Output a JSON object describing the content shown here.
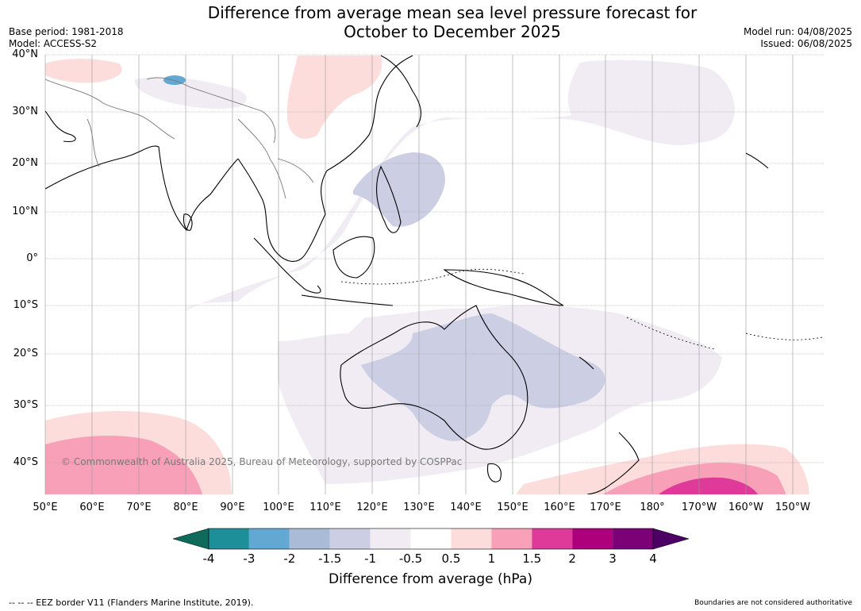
{
  "title": {
    "line1": "Difference from average mean sea level pressure forecast for",
    "line2": "October to December 2025"
  },
  "meta": {
    "base_period": "Base period: 1981-2018",
    "model": "Model: ACCESS-S2",
    "model_run": "Model run: 04/08/2025",
    "issued": "Issued: 06/08/2025"
  },
  "map": {
    "latitude_labels": [
      "40°N",
      "30°N",
      "20°N",
      "10°N",
      "0°",
      "10°S",
      "20°S",
      "30°S",
      "40°S"
    ],
    "longitude_labels": [
      "50°E",
      "60°E",
      "70°E",
      "80°E",
      "90°E",
      "100°E",
      "110°E",
      "120°E",
      "130°E",
      "140°E",
      "150°E",
      "160°E",
      "170°E",
      "180°",
      "170°W",
      "160°W",
      "150°W"
    ],
    "copyright": "© Commonwealth of Australia 2025, Bureau of Meteorology, supported by COSPPac",
    "land_outline_color": "#000000",
    "border_color": "#777777"
  },
  "colorbar": {
    "ticks": [
      "-4",
      "-3",
      "-2",
      "-1.5",
      "-1",
      "-0.5",
      "0.5",
      "1",
      "1.5",
      "2",
      "3",
      "4"
    ],
    "colors": [
      "#0e6b5b",
      "#1d8f98",
      "#63a7d3",
      "#a9bbd6",
      "#cccfe4",
      "#f1ecf3",
      "#ffffff",
      "#fddddc",
      "#f7a0b8",
      "#df3a9a",
      "#ad007a",
      "#7c0076",
      "#4d0063"
    ],
    "label": "Difference from average (hPa)"
  },
  "footer": {
    "left": "--  --  -- EEZ border V11 (Flanders Marine Institute, 2019).",
    "right": "Boundaries are not considered authoritative"
  }
}
